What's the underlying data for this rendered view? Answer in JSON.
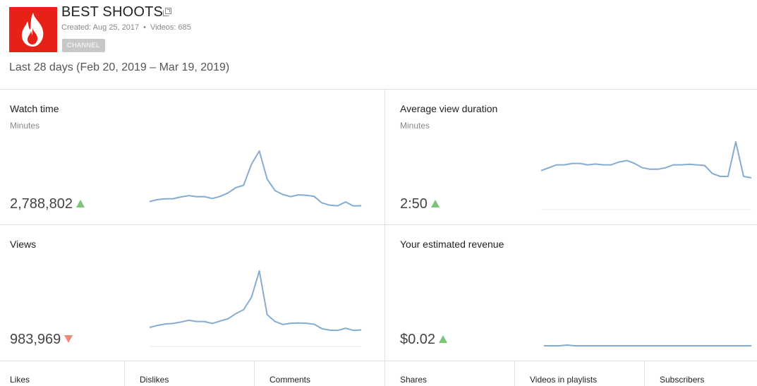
{
  "channel": {
    "name": "BEST SHOOTS",
    "created": "Created: Aug 25, 2017",
    "separator": "•",
    "videos": "Videos: 685",
    "badge": "CHANNEL",
    "logo_icon": "flame-icon",
    "logo_color": "#e62117"
  },
  "date_range": "Last 28 days (Feb 20, 2019 – Mar 19, 2019)",
  "colors": {
    "line": "#86acd1",
    "up": "#7cc576",
    "down": "#f0857a",
    "baseline": "#e8e8e8"
  },
  "cards": {
    "watch_time": {
      "title": "Watch time",
      "unit": "Minutes",
      "value": "2,788,802",
      "trend": "up",
      "series": [
        27,
        37,
        41,
        42,
        51,
        58,
        52,
        53,
        43,
        54,
        72,
        99,
        112,
        221,
        290,
        144,
        84,
        64,
        53,
        62,
        60,
        54,
        20,
        8,
        5,
        25,
        4,
        6
      ]
    },
    "avg_view_duration": {
      "title": "Average view duration",
      "unit": "Minutes",
      "value": "2:50",
      "trend": "up",
      "series": [
        170,
        171,
        172,
        172,
        172.5,
        172.5,
        172,
        172.3,
        172,
        172,
        173,
        173.5,
        172.5,
        171,
        170.5,
        170.5,
        171,
        172,
        172,
        172.2,
        172,
        171.8,
        169,
        168,
        168,
        180,
        168,
        167.5
      ]
    },
    "views": {
      "title": "Views",
      "unit": "",
      "value": "983,969",
      "trend": "down",
      "series": [
        60,
        68,
        74,
        76,
        82,
        89,
        84,
        84,
        76,
        86,
        95,
        116,
        132,
        182,
        289,
        112,
        84,
        72,
        77,
        78,
        77,
        73,
        55,
        49,
        48,
        57,
        48,
        50
      ]
    },
    "revenue": {
      "title": "Your estimated revenue",
      "unit": "",
      "value": "$0.02",
      "trend": "up",
      "series": [
        0,
        0,
        0,
        0.3,
        0,
        0,
        0,
        0,
        0,
        0,
        0,
        0,
        0,
        0,
        0,
        0,
        0,
        0,
        0,
        0,
        0,
        0,
        0,
        0,
        0,
        0,
        0,
        0
      ]
    }
  },
  "bottom_metrics": [
    "Likes",
    "Dislikes",
    "Comments",
    "Shares",
    "Videos in playlists",
    "Subscribers"
  ]
}
